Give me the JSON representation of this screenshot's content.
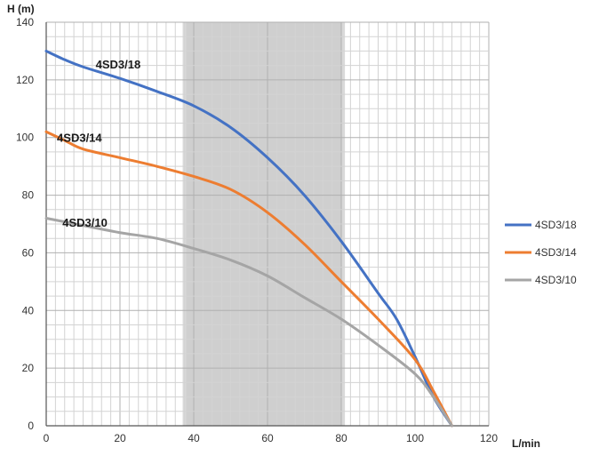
{
  "chart_data": {
    "type": "line",
    "xlabel": "L/min",
    "ylabel": "H (m)",
    "xlim": [
      0,
      120
    ],
    "ylim": [
      0,
      140
    ],
    "x_ticks": [
      "0",
      "20",
      "40",
      "60",
      "80",
      "100",
      "120"
    ],
    "y_ticks": [
      "0",
      "20",
      "40",
      "60",
      "80",
      "100",
      "120",
      "140"
    ],
    "grid": true,
    "legend_position": "right",
    "highlight_band": {
      "x_range": [
        37,
        81
      ],
      "color": "#d9d9d9"
    },
    "series": [
      {
        "name": "4SD3/18",
        "label": "4SD3/18",
        "color": "#4472c4",
        "points": [
          [
            0,
            130
          ],
          [
            5,
            127
          ],
          [
            10,
            124.5
          ],
          [
            20,
            120.5
          ],
          [
            30,
            116
          ],
          [
            40,
            111
          ],
          [
            50,
            103.5
          ],
          [
            60,
            93
          ],
          [
            70,
            80
          ],
          [
            80,
            64
          ],
          [
            90,
            46
          ],
          [
            95,
            37
          ],
          [
            100,
            24
          ],
          [
            105,
            10
          ],
          [
            110,
            0
          ]
        ]
      },
      {
        "name": "4SD3/14",
        "label": "4SD3/14",
        "color": "#ed7d31",
        "points": [
          [
            0,
            102
          ],
          [
            5,
            99
          ],
          [
            10,
            96
          ],
          [
            20,
            93
          ],
          [
            30,
            90
          ],
          [
            40,
            86.5
          ],
          [
            50,
            82
          ],
          [
            60,
            74
          ],
          [
            70,
            63
          ],
          [
            80,
            50
          ],
          [
            90,
            37
          ],
          [
            100,
            23
          ],
          [
            105,
            12
          ],
          [
            110,
            0
          ]
        ]
      },
      {
        "name": "4SD3/10",
        "label": "4SD3/10",
        "color": "#a5a5a5",
        "points": [
          [
            0,
            72
          ],
          [
            10,
            69.5
          ],
          [
            20,
            67
          ],
          [
            30,
            65
          ],
          [
            40,
            61.5
          ],
          [
            50,
            57.5
          ],
          [
            60,
            52
          ],
          [
            70,
            44.5
          ],
          [
            80,
            37
          ],
          [
            90,
            28
          ],
          [
            100,
            18
          ],
          [
            105,
            10
          ],
          [
            110,
            0
          ]
        ]
      }
    ]
  }
}
